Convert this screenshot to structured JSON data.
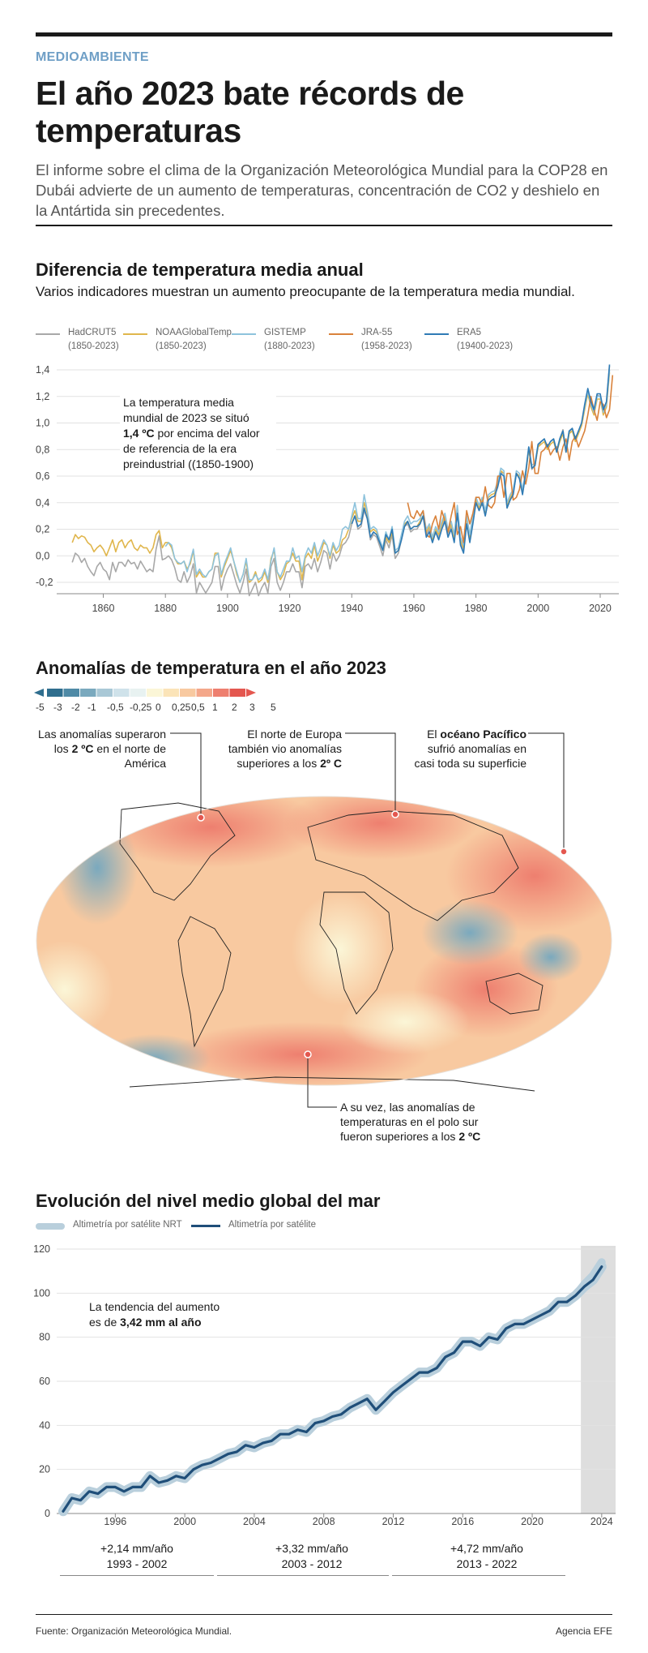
{
  "header": {
    "section": "MEDIOAMBIENTE",
    "title": "El año 2023 bate récords de temperaturas",
    "intro": "El informe sobre el clima de la Organización Meteorológica Mundial para la COP28 en Dubái advierte de un aumento de temperaturas, concentración de CO2 y deshielo en la Antártida sin precedentes."
  },
  "temp_section": {
    "title": "Diferencia de temperatura media anual",
    "subtitle": "Varios indicadores muestran un aumento preocupante de la temperatura media mundial.",
    "note_line1": "La temperatura media",
    "note_line2": "mundial de 2023 se situó",
    "note_bold": "1,4 ºC",
    "note_line3": " por encima del valor",
    "note_line4": "de referencia de la era",
    "note_line5": "preindustrial ((1850-1900)"
  },
  "map_section": {
    "title": "Anomalías de temperatura en el año 2023",
    "scale_labels": [
      "-5",
      "-3",
      "-2",
      "-1",
      "-0,5",
      "-0,25",
      "0",
      "0,25",
      "0,5",
      "1",
      "2",
      "3",
      "5"
    ],
    "scale_colors": [
      "#2f6e8e",
      "#4f8aa6",
      "#7aa9be",
      "#a9c8d6",
      "#cfe2ea",
      "#e8f2f1",
      "#fbf6d7",
      "#fbe4b8",
      "#f8c9a0",
      "#f4a78a",
      "#ee7f6f",
      "#e4574f"
    ],
    "ann_america_1": "Las anomalías superaron",
    "ann_america_2a": "los ",
    "ann_america_2b": "2 ºC",
    "ann_america_2c": " en el norte de",
    "ann_america_3": "América",
    "ann_europe_1": "El norte de Europa",
    "ann_europe_2": "también vio anomalías",
    "ann_europe_3a": "superiores a los ",
    "ann_europe_3b": "2º C",
    "ann_pacific_1a": "El ",
    "ann_pacific_1b": "océano Pacífico",
    "ann_pacific_2": "sufrió anomalías en",
    "ann_pacific_3": "casi toda su superficie",
    "ann_south_1": "A su vez, las anomalías de",
    "ann_south_2": "temperaturas en el polo sur",
    "ann_south_3a": "fueron superiores a los ",
    "ann_south_3b": "2 ºC"
  },
  "sea_section": {
    "title": "Evolución del nivel medio global del mar",
    "legend_nrt": "Altimetría por satélite NRT",
    "legend_sat": "Altimetría por satélite",
    "note_line1": "La tendencia del aumento",
    "note_line2a": "es de ",
    "note_line2b": "3,42 mm al año",
    "rates": [
      {
        "rate": "+2,14 mm/año",
        "period": "1993 - 2002"
      },
      {
        "rate": "+3,32 mm/año",
        "period": "2003 - 2012"
      },
      {
        "rate": "+4,72 mm/año",
        "period": "2013 - 2022"
      }
    ]
  },
  "footer": {
    "source": "Fuente: Organización Meteorológica Mundial.",
    "agency": "Agencia EFE"
  },
  "chart_data": [
    {
      "type": "line",
      "title": "Diferencia de temperatura media anual",
      "xlim": [
        1850,
        2023
      ],
      "ylim": [
        -0.2,
        1.4
      ],
      "x_ticks": [
        1860,
        1880,
        1900,
        1920,
        1940,
        1960,
        1980,
        2000,
        2020
      ],
      "y_ticks": [
        "-0,2",
        "0,0",
        "0,2",
        "0,4",
        "0,6",
        "0,8",
        "1,0",
        "1,2",
        "1,4"
      ],
      "y_tick_values": [
        -0.2,
        0,
        0.2,
        0.4,
        0.6,
        0.8,
        1.0,
        1.2,
        1.4
      ],
      "grid": true,
      "legend_position": "top",
      "series": [
        {
          "name": "HadCRUT5",
          "range": "(1850-2023)",
          "color": "#a8a8a8",
          "start": 1850,
          "values": [
            -0.05,
            0.02,
            0.0,
            -0.05,
            -0.02,
            -0.08,
            -0.12,
            -0.15,
            -0.08,
            -0.05,
            -0.1,
            -0.12,
            -0.18,
            -0.05,
            -0.12,
            -0.05,
            -0.05,
            -0.08,
            -0.03,
            -0.06,
            -0.05,
            -0.1,
            -0.04,
            -0.08,
            -0.12,
            -0.1,
            -0.12,
            0.05,
            0.15,
            -0.03,
            -0.02,
            0.0,
            -0.03,
            -0.09,
            -0.18,
            -0.2,
            -0.12,
            -0.2,
            -0.15,
            -0.06,
            -0.28,
            -0.2,
            -0.24,
            -0.28,
            -0.24,
            -0.2,
            -0.08,
            -0.08,
            -0.26,
            -0.16,
            -0.1,
            -0.06,
            -0.14,
            -0.22,
            -0.28,
            -0.2,
            -0.1,
            -0.3,
            -0.25,
            -0.2,
            -0.3,
            -0.24,
            -0.2,
            -0.28,
            -0.08,
            -0.02,
            -0.2,
            -0.26,
            -0.2,
            -0.12,
            -0.12,
            -0.06,
            -0.12,
            -0.12,
            -0.24,
            -0.08,
            -0.06,
            -0.1,
            -0.02,
            -0.12,
            -0.05,
            0.04,
            0.02,
            -0.1,
            0.02,
            -0.04,
            -0.0,
            0.08,
            0.1,
            0.14,
            0.24,
            0.3,
            0.2,
            0.22,
            0.34,
            0.28,
            0.12,
            0.16,
            0.14,
            0.07,
            0.0,
            0.12,
            0.06,
            0.16,
            -0.02,
            0.02,
            0.12,
            0.22,
            0.24,
            0.18,
            0.2,
            0.2,
            0.24,
            0.3,
            0.16,
            0.2,
            0.1,
            0.18,
            0.14,
            0.22,
            0.28,
            0.16,
            0.22,
            0.12,
            0.34,
            0.1,
            0.04,
            0.27,
            0.12,
            0.26,
            0.4,
            0.35,
            0.41,
            0.3,
            0.42,
            0.44,
            0.45,
            0.52,
            0.63,
            0.62,
            0.36,
            0.42,
            0.47,
            0.62,
            0.6,
            0.47,
            0.61,
            0.81,
            0.65,
            0.68,
            0.82,
            0.86,
            0.88,
            0.82,
            0.86,
            0.88,
            0.79,
            0.88,
            0.95,
            0.79,
            0.93,
            0.96,
            0.88,
            0.94,
            0.99,
            1.12,
            1.24,
            1.14,
            1.08,
            1.21,
            1.2,
            1.09,
            1.15,
            1.43
          ]
        },
        {
          "name": "NOAAGlobalTemp",
          "range": "(1850-2023)",
          "color": "#e0b64c",
          "start": 1850,
          "values": [
            0.1,
            0.16,
            0.13,
            0.15,
            0.14,
            0.1,
            0.08,
            0.03,
            0.06,
            0.08,
            0.05,
            0.0,
            0.06,
            0.12,
            0.03,
            0.1,
            0.12,
            0.06,
            0.1,
            0.12,
            0.06,
            0.04,
            0.08,
            0.06,
            0.06,
            0.02,
            0.06,
            0.16,
            0.19,
            0.06,
            0.1,
            0.1,
            0.06,
            -0.02,
            -0.06,
            -0.06,
            -0.04,
            -0.1,
            -0.06,
            0.04,
            -0.16,
            -0.12,
            -0.16,
            -0.16,
            -0.12,
            -0.1,
            0.02,
            0.02,
            -0.16,
            -0.08,
            -0.02,
            0.04,
            -0.04,
            -0.14,
            -0.2,
            -0.14,
            -0.04,
            -0.2,
            -0.18,
            -0.12,
            -0.2,
            -0.18,
            -0.12,
            -0.2,
            -0.02,
            0.04,
            -0.12,
            -0.18,
            -0.14,
            -0.06,
            -0.04,
            0.02,
            -0.04,
            -0.04,
            -0.18,
            -0.02,
            0.02,
            -0.02,
            0.08,
            -0.04,
            0.02,
            0.1,
            0.08,
            -0.02,
            0.08,
            0.02,
            0.04,
            0.12,
            0.14,
            0.2,
            0.28,
            0.34,
            0.26,
            0.26,
            0.4,
            0.32,
            0.18,
            0.2,
            0.18,
            0.1,
            0.04,
            0.14,
            0.1,
            0.18,
            0.02,
            0.04,
            0.14,
            0.24,
            0.26,
            0.2,
            0.22,
            0.22,
            0.26,
            0.3,
            0.18,
            0.22,
            0.12,
            0.2,
            0.16,
            0.24,
            0.3,
            0.18,
            0.24,
            0.14,
            0.36,
            0.12,
            0.06,
            0.28,
            0.14,
            0.28,
            0.42,
            0.36,
            0.42,
            0.32,
            0.44,
            0.46,
            0.47,
            0.54,
            0.64,
            0.62,
            0.38,
            0.44,
            0.48,
            0.62,
            0.6,
            0.48,
            0.62,
            0.8,
            0.66,
            0.68,
            0.82,
            0.84,
            0.86,
            0.8,
            0.84,
            0.86,
            0.78,
            0.86,
            0.92,
            0.78,
            0.92,
            0.94,
            0.86,
            0.92,
            0.98,
            1.1,
            1.22,
            1.12,
            1.06,
            1.18,
            1.18,
            1.06,
            1.12,
            1.38
          ]
        },
        {
          "name": "GISTEMP",
          "range": "(1880-2023)",
          "color": "#8ec3dc",
          "start": 1880,
          "values": [
            0.07,
            0.1,
            0.08,
            -0.02,
            -0.05,
            -0.06,
            -0.04,
            -0.12,
            -0.04,
            0.05,
            -0.14,
            -0.1,
            -0.14,
            -0.16,
            -0.12,
            -0.1,
            0.0,
            0.02,
            -0.14,
            -0.06,
            -0.0,
            0.06,
            -0.04,
            -0.12,
            -0.2,
            -0.14,
            -0.02,
            -0.18,
            -0.18,
            -0.14,
            -0.18,
            -0.16,
            -0.1,
            -0.18,
            -0.04,
            0.06,
            -0.12,
            -0.16,
            -0.1,
            -0.04,
            -0.04,
            0.06,
            -0.02,
            -0.0,
            -0.12,
            -0.0,
            0.06,
            0.02,
            0.1,
            -0.0,
            0.06,
            0.12,
            0.08,
            0.0,
            0.1,
            0.04,
            0.08,
            0.2,
            0.22,
            0.2,
            0.3,
            0.4,
            0.28,
            0.28,
            0.46,
            0.34,
            0.2,
            0.22,
            0.2,
            0.12,
            0.06,
            0.18,
            0.12,
            0.22,
            0.04,
            0.06,
            0.16,
            0.26,
            0.3,
            0.24,
            0.26,
            0.26,
            0.28,
            0.34,
            0.2,
            0.24,
            0.14,
            0.22,
            0.18,
            0.26,
            0.32,
            0.2,
            0.26,
            0.16,
            0.38,
            0.14,
            0.08,
            0.3,
            0.16,
            0.3,
            0.44,
            0.38,
            0.44,
            0.34,
            0.46,
            0.48,
            0.49,
            0.56,
            0.66,
            0.64,
            0.4,
            0.46,
            0.5,
            0.64,
            0.62,
            0.5,
            0.64,
            0.82,
            0.68,
            0.7,
            0.84,
            0.86,
            0.88,
            0.82,
            0.86,
            0.88,
            0.8,
            0.88,
            0.94,
            0.8,
            0.94,
            0.96,
            0.88,
            0.94,
            1.0,
            1.12,
            1.24,
            1.14,
            1.08,
            1.2,
            1.2,
            1.08,
            1.14,
            1.4
          ]
        },
        {
          "name": "JRA-55",
          "range": "(1958-2023)",
          "color": "#d9823b",
          "start": 1958,
          "values": [
            0.4,
            0.3,
            0.28,
            0.34,
            0.3,
            0.34,
            0.16,
            0.14,
            0.24,
            0.3,
            0.2,
            0.34,
            0.26,
            0.18,
            0.3,
            0.4,
            0.16,
            0.22,
            0.1,
            0.34,
            0.24,
            0.32,
            0.44,
            0.44,
            0.38,
            0.52,
            0.38,
            0.36,
            0.4,
            0.6,
            0.6,
            0.44,
            0.62,
            0.62,
            0.42,
            0.44,
            0.5,
            0.64,
            0.54,
            0.66,
            0.86,
            0.62,
            0.62,
            0.78,
            0.8,
            0.84,
            0.76,
            0.8,
            0.82,
            0.72,
            0.82,
            0.88,
            0.72,
            0.86,
            0.9,
            0.82,
            0.88,
            0.94,
            1.06,
            1.2,
            1.1,
            1.02,
            1.16,
            1.14,
            1.04,
            1.1,
            1.36
          ]
        },
        {
          "name": "ERA5",
          "range": "(19400-2023)",
          "color": "#2f7bb5",
          "start": 1940,
          "values": [
            0.24,
            0.3,
            0.22,
            0.24,
            0.36,
            0.28,
            0.14,
            0.18,
            0.16,
            0.1,
            0.04,
            0.16,
            0.12,
            0.2,
            0.02,
            0.04,
            0.12,
            0.22,
            0.26,
            0.2,
            0.22,
            0.22,
            0.24,
            0.3,
            0.14,
            0.18,
            0.1,
            0.18,
            0.12,
            0.2,
            0.26,
            0.14,
            0.2,
            0.1,
            0.32,
            0.08,
            0.02,
            0.24,
            0.1,
            0.24,
            0.4,
            0.34,
            0.4,
            0.3,
            0.42,
            0.44,
            0.45,
            0.52,
            0.62,
            0.6,
            0.36,
            0.42,
            0.46,
            0.62,
            0.58,
            0.46,
            0.62,
            0.82,
            0.66,
            0.68,
            0.84,
            0.86,
            0.88,
            0.82,
            0.86,
            0.88,
            0.78,
            0.88,
            0.94,
            0.78,
            0.94,
            0.96,
            0.88,
            0.94,
            1.0,
            1.14,
            1.26,
            1.16,
            1.1,
            1.22,
            1.22,
            1.1,
            1.16,
            1.44
          ]
        }
      ]
    },
    {
      "type": "line",
      "title": "Evolución del nivel medio global del mar",
      "xlim": [
        1993,
        2024
      ],
      "ylim": [
        0,
        120
      ],
      "x_ticks": [
        1996,
        2000,
        2004,
        2008,
        2012,
        2016,
        2020,
        2024
      ],
      "y_ticks": [
        0,
        20,
        40,
        60,
        80,
        100,
        120
      ],
      "grid": true,
      "legend_position": "top-left",
      "shaded_range_x": [
        2022.8,
        2024.3
      ],
      "series": [
        {
          "name": "Altimetría por satélite",
          "color": "#1f4e79",
          "x": [
            1993,
            1993.5,
            1994,
            1994.5,
            1995,
            1995.5,
            1996,
            1996.5,
            1997,
            1997.5,
            1998,
            1998.5,
            1999,
            1999.5,
            2000,
            2000.5,
            2001,
            2001.5,
            2002,
            2002.5,
            2003,
            2003.5,
            2004,
            2004.5,
            2005,
            2005.5,
            2006,
            2006.5,
            2007,
            2007.5,
            2008,
            2008.5,
            2009,
            2009.5,
            2010,
            2010.5,
            2011,
            2011.5,
            2012,
            2012.5,
            2013,
            2013.5,
            2014,
            2014.5,
            2015,
            2015.5,
            2016,
            2016.5,
            2017,
            2017.5,
            2018,
            2018.5,
            2019,
            2019.5,
            2020,
            2020.5,
            2021,
            2021.5,
            2022,
            2022.5,
            2023,
            2023.5,
            2024
          ],
          "values": [
            1,
            7,
            6,
            10,
            9,
            12,
            12,
            10,
            12,
            12,
            17,
            14,
            15,
            17,
            16,
            20,
            22,
            23,
            25,
            27,
            28,
            31,
            30,
            32,
            33,
            36,
            36,
            38,
            37,
            41,
            42,
            44,
            45,
            48,
            50,
            52,
            47,
            51,
            55,
            58,
            61,
            64,
            64,
            66,
            71,
            73,
            78,
            78,
            76,
            80,
            79,
            84,
            86,
            86,
            88,
            90,
            92,
            96,
            96,
            99,
            103,
            106,
            112
          ]
        },
        {
          "name": "Altimetría por satélite NRT",
          "color": "#b9cfdc",
          "x": [
            2022.5,
            2023,
            2023.5,
            2024
          ],
          "values": [
            99,
            104,
            108,
            114
          ]
        }
      ]
    }
  ]
}
